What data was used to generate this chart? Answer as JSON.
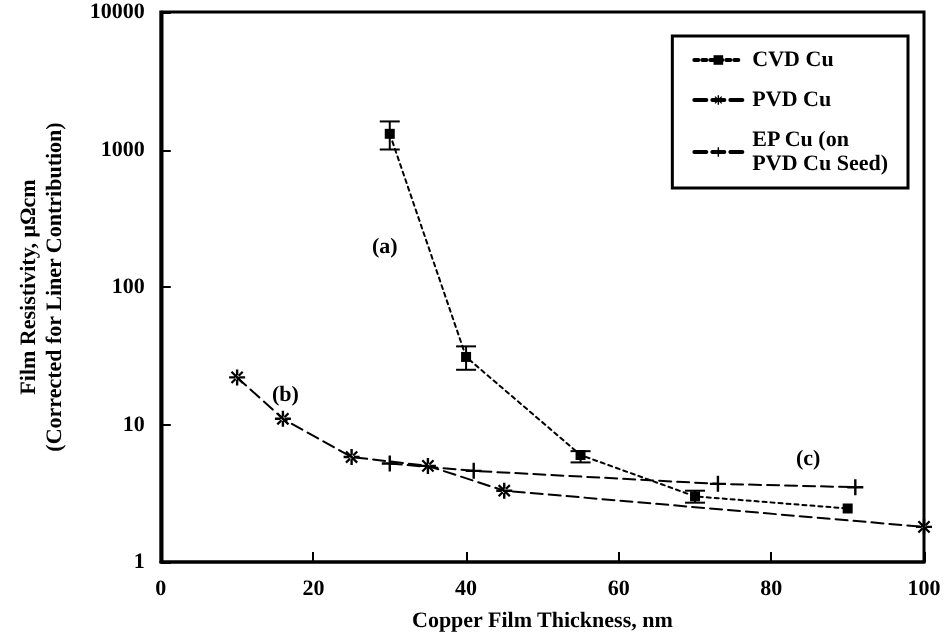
{
  "chart_data": {
    "type": "line",
    "xlabel": "Copper Film Thickness, nm",
    "ylabel": "Film Resistivity, μΩcm\n(Corrected for Liner Contribution)",
    "xlim": [
      0,
      100
    ],
    "xticks": [
      0,
      20,
      40,
      60,
      80,
      100
    ],
    "ylim": [
      1,
      10000
    ],
    "yticks": [
      1,
      10,
      100,
      1000,
      10000
    ],
    "log": "y",
    "grid": false,
    "legend": "top right",
    "series": [
      {
        "name": "CVD Cu",
        "color": "#000000",
        "marker": "square",
        "line_style": "dotted",
        "x": [
          30,
          40,
          55,
          70,
          90
        ],
        "values": [
          1300,
          31,
          6,
          3,
          2.45
        ],
        "errors": [
          [
            1000,
            1600
          ],
          [
            25,
            37
          ],
          [
            5.3,
            6.4
          ],
          [
            2.7,
            3.3
          ],
          null
        ]
      },
      {
        "name": "PVD Cu",
        "color": "#000000",
        "marker": "star",
        "line_style": "dashed",
        "x": [
          10,
          16,
          25,
          35,
          45,
          100
        ],
        "values": [
          22,
          11,
          5.8,
          5,
          3.3,
          1.8
        ]
      },
      {
        "name": "EP Cu (on\nPVD Cu Seed)",
        "color": "#000000",
        "marker": "cross",
        "line_style": "dashed",
        "x": [
          30,
          41,
          73,
          91
        ],
        "values": [
          5.2,
          4.6,
          3.7,
          3.5
        ]
      }
    ],
    "annotations": [
      "(a)",
      "(b)",
      "(c)"
    ]
  }
}
